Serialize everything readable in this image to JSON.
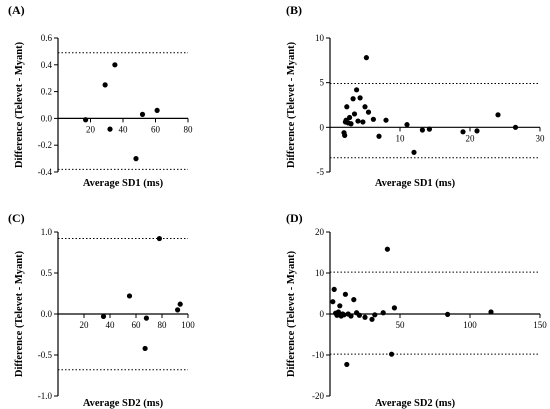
{
  "chart_data": [
    {
      "type": "scatter",
      "panel_label": "(A)",
      "xlabel": "Average SD1 (ms)",
      "ylabel": "Difference (Televet - Myant)",
      "xlim": [
        0,
        80
      ],
      "ylim": [
        -0.4,
        0.6
      ],
      "xticks": [
        20,
        40,
        60,
        80
      ],
      "yticks": [
        -0.4,
        -0.2,
        0.0,
        0.2,
        0.4,
        0.6
      ],
      "xtick_labels": [
        "20",
        "40",
        "60",
        "80"
      ],
      "ytick_labels": [
        "-0.4",
        "-0.2",
        "0.0",
        "0.2",
        "0.4",
        "0.6"
      ],
      "reference_lines": [
        0.49,
        -0.38
      ],
      "points": [
        {
          "x": 17,
          "y": -0.01
        },
        {
          "x": 29,
          "y": 0.25
        },
        {
          "x": 32,
          "y": -0.08
        },
        {
          "x": 35,
          "y": 0.4
        },
        {
          "x": 48,
          "y": -0.3
        },
        {
          "x": 52,
          "y": 0.03
        },
        {
          "x": 61,
          "y": 0.06
        }
      ]
    },
    {
      "type": "scatter",
      "panel_label": "(B)",
      "xlabel": "Average SD1 (ms)",
      "ylabel": "Difference (Televet - Myant)",
      "xlim": [
        0,
        30
      ],
      "ylim": [
        -5,
        10
      ],
      "xticks": [
        10,
        20,
        30
      ],
      "yticks": [
        -5,
        0,
        5,
        10
      ],
      "xtick_labels": [
        "10",
        "20",
        "30"
      ],
      "ytick_labels": [
        "-5",
        "0",
        "5",
        "10"
      ],
      "reference_lines": [
        4.9,
        -3.4
      ],
      "points": [
        {
          "x": 2.0,
          "y": -0.6
        },
        {
          "x": 2.1,
          "y": -0.9
        },
        {
          "x": 2.2,
          "y": 0.6
        },
        {
          "x": 2.3,
          "y": 0.8
        },
        {
          "x": 2.4,
          "y": 2.3
        },
        {
          "x": 2.6,
          "y": 0.5
        },
        {
          "x": 2.8,
          "y": 1.1
        },
        {
          "x": 3.0,
          "y": 0.4
        },
        {
          "x": 3.3,
          "y": 3.2
        },
        {
          "x": 3.5,
          "y": 1.5
        },
        {
          "x": 3.8,
          "y": 4.2
        },
        {
          "x": 4.0,
          "y": 0.7
        },
        {
          "x": 4.3,
          "y": 3.3
        },
        {
          "x": 4.7,
          "y": 0.6
        },
        {
          "x": 5.0,
          "y": 2.3
        },
        {
          "x": 5.2,
          "y": 7.8
        },
        {
          "x": 5.5,
          "y": 1.7
        },
        {
          "x": 6.2,
          "y": 0.9
        },
        {
          "x": 7.0,
          "y": -1.0
        },
        {
          "x": 8.0,
          "y": 0.8
        },
        {
          "x": 11.0,
          "y": 0.3
        },
        {
          "x": 12.0,
          "y": -2.8
        },
        {
          "x": 13.2,
          "y": -0.3
        },
        {
          "x": 14.2,
          "y": -0.2
        },
        {
          "x": 19.0,
          "y": -0.5
        },
        {
          "x": 21.0,
          "y": -0.4
        },
        {
          "x": 24.0,
          "y": 1.4
        },
        {
          "x": 26.5,
          "y": 0.0
        }
      ]
    },
    {
      "type": "scatter",
      "panel_label": "(C)",
      "xlabel": "Average SD2 (ms)",
      "ylabel": "Difference (Televet - Myant)",
      "xlim": [
        0,
        100
      ],
      "ylim": [
        -1.0,
        1.0
      ],
      "xticks": [
        20,
        40,
        60,
        80,
        100
      ],
      "yticks": [
        -1.0,
        -0.5,
        0.0,
        0.5,
        1.0
      ],
      "xtick_labels": [
        "20",
        "40",
        "60",
        "80",
        "100"
      ],
      "ytick_labels": [
        "-1.0",
        "-0.5",
        "0.0",
        "0.5",
        "1.0"
      ],
      "reference_lines": [
        0.92,
        -0.68
      ],
      "points": [
        {
          "x": 35,
          "y": -0.03
        },
        {
          "x": 55,
          "y": 0.22
        },
        {
          "x": 67,
          "y": -0.42
        },
        {
          "x": 68,
          "y": -0.05
        },
        {
          "x": 78,
          "y": 0.92
        },
        {
          "x": 92,
          "y": 0.05
        },
        {
          "x": 94,
          "y": 0.12
        }
      ]
    },
    {
      "type": "scatter",
      "panel_label": "(D)",
      "xlabel": "Average SD2 (ms)",
      "ylabel": "Difference (Televet - Myant)",
      "xlim": [
        0,
        150
      ],
      "ylim": [
        -20,
        20
      ],
      "xticks": [
        50,
        100,
        150
      ],
      "yticks": [
        -20,
        -10,
        0,
        10,
        20
      ],
      "xtick_labels": [
        "50",
        "100",
        "150"
      ],
      "ytick_labels": [
        "-20",
        "-10",
        "0",
        "10",
        "20"
      ],
      "reference_lines": [
        10.2,
        -9.8
      ],
      "points": [
        {
          "x": 2,
          "y": 3.0
        },
        {
          "x": 3,
          "y": 6.0
        },
        {
          "x": 4,
          "y": 0.2
        },
        {
          "x": 5,
          "y": -0.3
        },
        {
          "x": 6,
          "y": 0.5
        },
        {
          "x": 7,
          "y": 2.0
        },
        {
          "x": 8,
          "y": -0.5
        },
        {
          "x": 9,
          "y": 0.0
        },
        {
          "x": 10,
          "y": -0.2
        },
        {
          "x": 11,
          "y": 4.8
        },
        {
          "x": 12,
          "y": -12.3
        },
        {
          "x": 13,
          "y": 0.0
        },
        {
          "x": 15,
          "y": -0.5
        },
        {
          "x": 17,
          "y": 3.5
        },
        {
          "x": 19,
          "y": 0.3
        },
        {
          "x": 21,
          "y": -0.3
        },
        {
          "x": 25,
          "y": -0.8
        },
        {
          "x": 30,
          "y": -1.3
        },
        {
          "x": 32,
          "y": -0.2
        },
        {
          "x": 38,
          "y": 0.3
        },
        {
          "x": 41,
          "y": 15.8
        },
        {
          "x": 44,
          "y": -9.8
        },
        {
          "x": 46,
          "y": 1.5
        },
        {
          "x": 84,
          "y": -0.1
        },
        {
          "x": 115,
          "y": 0.5
        }
      ]
    }
  ]
}
